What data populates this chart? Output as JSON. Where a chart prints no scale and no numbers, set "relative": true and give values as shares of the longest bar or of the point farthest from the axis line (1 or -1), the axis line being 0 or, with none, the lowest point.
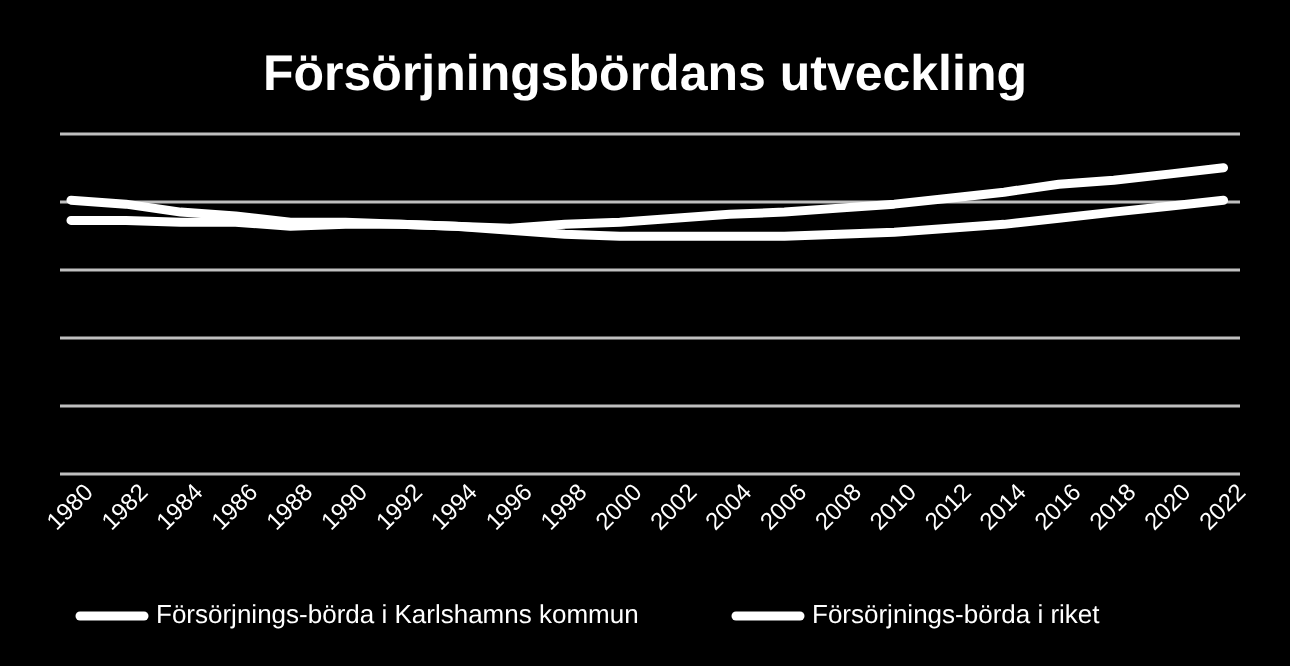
{
  "chart_data": {
    "type": "line",
    "title": "Försörjningsbördans utveckling",
    "relative": true,
    "grid": "y",
    "legend": "bottom",
    "marker": "none",
    "line_style": "solid",
    "x": [
      1980,
      1982,
      1984,
      1986,
      1988,
      1990,
      1992,
      1994,
      1996,
      1998,
      2000,
      2002,
      2004,
      2006,
      2008,
      2010,
      2012,
      2014,
      2016,
      2018,
      2020,
      2022
    ],
    "xlim": [
      1979.6,
      2022.6
    ],
    "xticks": [
      1980,
      1982,
      1984,
      1986,
      1988,
      1990,
      1992,
      1994,
      1996,
      1998,
      2000,
      2002,
      2004,
      2006,
      2008,
      2010,
      2012,
      2014,
      2016,
      2018,
      2020,
      2022
    ],
    "series": [
      {
        "name": "Försörjnings-börda i Karlshamns kommun",
        "color": "#ffffff",
        "values": [
          0.894,
          0.881,
          0.855,
          0.842,
          0.822,
          0.822,
          0.815,
          0.809,
          0.796,
          0.783,
          0.776,
          0.776,
          0.776,
          0.776,
          0.783,
          0.789,
          0.802,
          0.815,
          0.835,
          0.855,
          0.874,
          0.894
        ]
      },
      {
        "name": "Försörjnings-börda i riket",
        "color": "#ffffff",
        "values": [
          0.828,
          0.828,
          0.822,
          0.822,
          0.809,
          0.815,
          0.815,
          0.809,
          0.802,
          0.815,
          0.822,
          0.835,
          0.848,
          0.855,
          0.868,
          0.881,
          0.9,
          0.92,
          0.946,
          0.959,
          0.979,
          1.0
        ]
      }
    ]
  }
}
